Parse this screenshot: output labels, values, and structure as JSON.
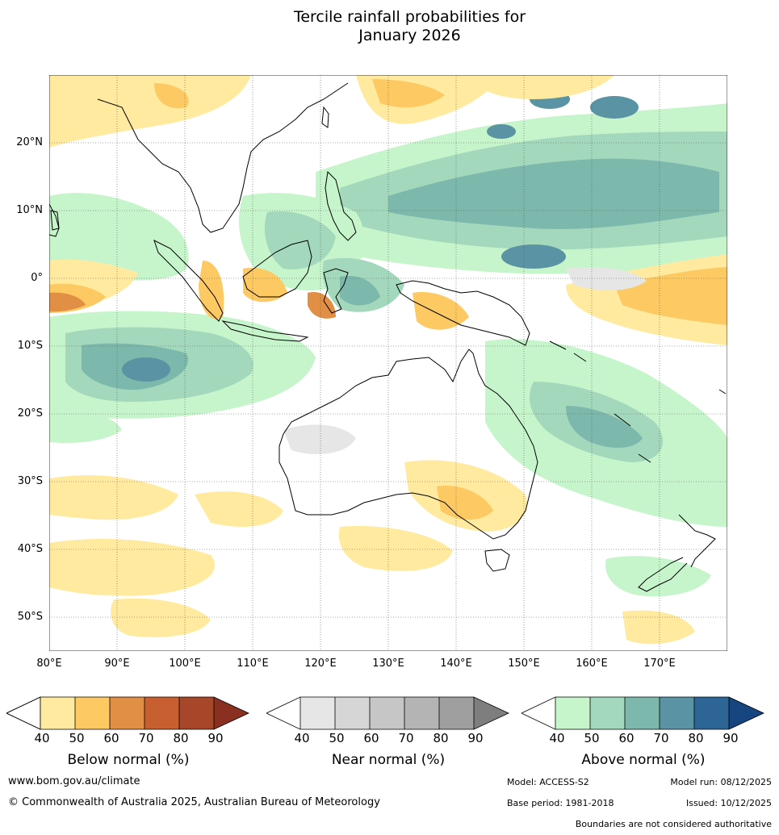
{
  "title": {
    "line1": "Tercile rainfall probabilities for",
    "line2": "January 2026"
  },
  "map": {
    "lat_labels": [
      "20°N",
      "10°N",
      "0°",
      "10°S",
      "20°S",
      "30°S",
      "40°S",
      "50°S"
    ],
    "lon_labels": [
      "80°E",
      "90°E",
      "100°E",
      "110°E",
      "120°E",
      "130°E",
      "140°E",
      "150°E",
      "160°E",
      "170°E"
    ]
  },
  "legends": {
    "below": {
      "label": "Below normal (%)",
      "ticks": [
        "40",
        "50",
        "60",
        "70",
        "80",
        "90"
      ],
      "colors": [
        "#ffffff",
        "#ffeaa0",
        "#fdc963",
        "#e28f46",
        "#c75f30",
        "#a8462a",
        "#8a3020"
      ]
    },
    "near": {
      "label": "Near normal (%)",
      "ticks": [
        "40",
        "50",
        "60",
        "70",
        "80",
        "90"
      ],
      "colors": [
        "#ffffff",
        "#e6e6e6",
        "#d6d6d6",
        "#c6c6c6",
        "#b4b4b4",
        "#9f9f9f",
        "#7e7e7e"
      ]
    },
    "above": {
      "label": "Above normal (%)",
      "ticks": [
        "40",
        "50",
        "60",
        "70",
        "80",
        "90"
      ],
      "colors": [
        "#ffffff",
        "#c7f5cb",
        "#a3d8bc",
        "#7db8ad",
        "#5a93a3",
        "#2d6696",
        "#16457f"
      ]
    }
  },
  "footer": {
    "url": "www.bom.gov.au/climate",
    "copyright": "© Commonwealth of Australia 2025, Australian Bureau of Meteorology",
    "model": "Model: ACCESS-S2",
    "model_run": "Model run: 08/12/2025",
    "base_period": "Base period: 1981-2018",
    "issued": "Issued: 10/12/2025",
    "disclaimer": "Boundaries are not considered authoritative"
  }
}
